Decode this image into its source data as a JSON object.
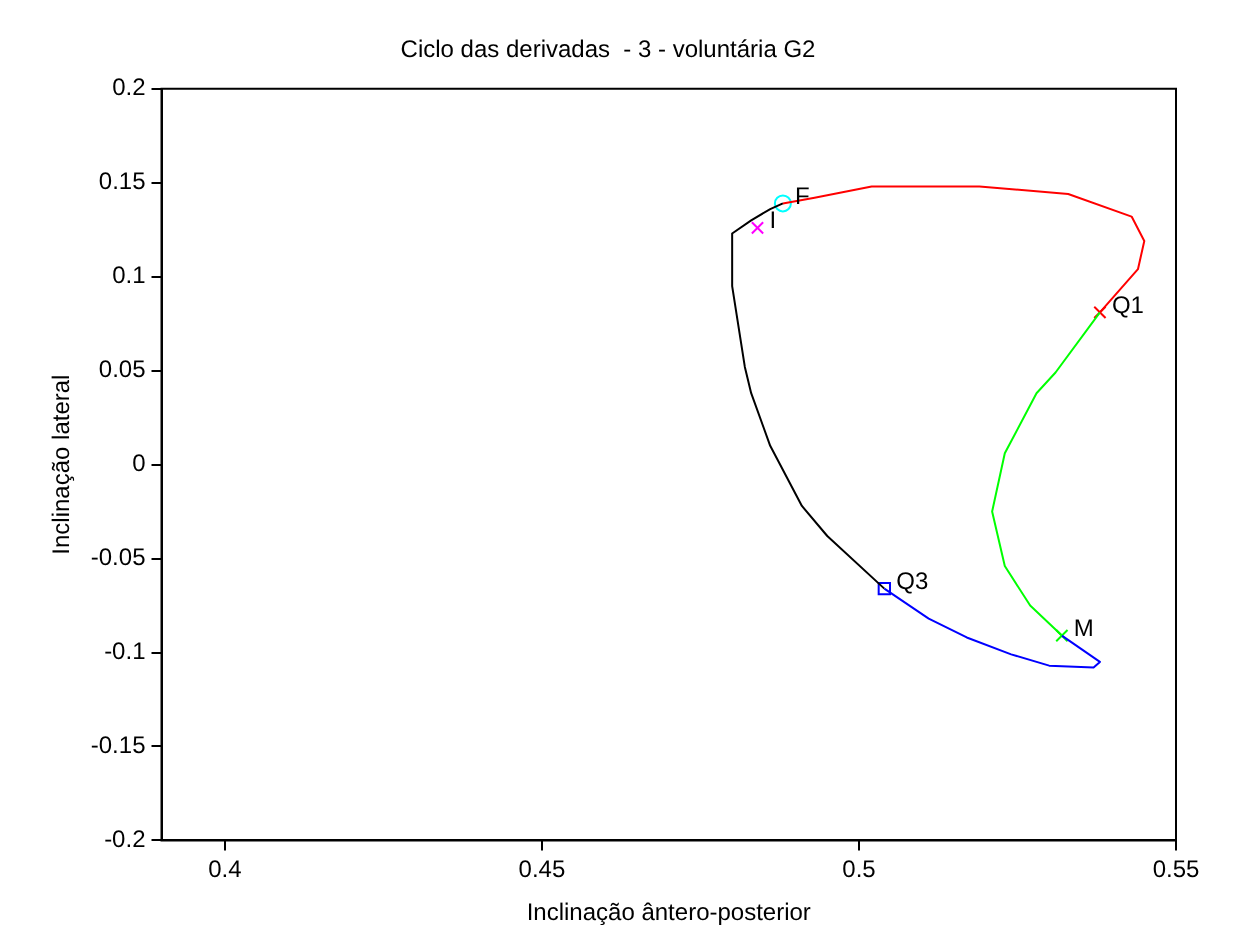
{
  "chart_data": {
    "type": "line",
    "title": "Ciclo das derivadas  - 3 - voluntária G2",
    "xlabel": "Inclinação ântero-posterior",
    "ylabel": "Inclinação lateral",
    "xlim": [
      0.39,
      0.55
    ],
    "xticks": [
      0.4,
      0.45,
      0.5,
      0.55
    ],
    "ylim": [
      -0.2,
      0.2
    ],
    "yticks": [
      -0.2,
      -0.15,
      -0.1,
      -0.05,
      0,
      0.05,
      0.1,
      0.15,
      0.2
    ],
    "grid": false,
    "legend": false,
    "marker": "none",
    "line_style": "solid",
    "series": [
      {
        "color": "#ff0000",
        "x": [
          0.488,
          0.493,
          0.502,
          0.519,
          0.533,
          0.543,
          0.545,
          0.544,
          0.538
        ],
        "values": [
          0.139,
          0.142,
          0.148,
          0.148,
          0.144,
          0.132,
          0.119,
          0.104,
          0.081
        ]
      },
      {
        "color": "#00ff00",
        "x": [
          0.538,
          0.531,
          0.528,
          0.523,
          0.521,
          0.523,
          0.527,
          0.532
        ],
        "values": [
          0.081,
          0.049,
          0.038,
          0.006,
          -0.025,
          -0.054,
          -0.075,
          -0.091
        ]
      },
      {
        "color": "#0000ff",
        "x": [
          0.532,
          0.538,
          0.537,
          0.53,
          0.524,
          0.517,
          0.511,
          0.504
        ],
        "values": [
          -0.091,
          -0.105,
          -0.108,
          -0.107,
          -0.101,
          -0.092,
          -0.082,
          -0.066
        ]
      },
      {
        "color": "#000000",
        "x": [
          0.504,
          0.495,
          0.491,
          0.486,
          0.483,
          0.482,
          0.48,
          0.48,
          0.483,
          0.486,
          0.488
        ],
        "values": [
          -0.066,
          -0.038,
          -0.022,
          0.01,
          0.038,
          0.052,
          0.095,
          0.123,
          0.13,
          0.136,
          0.139
        ]
      },
      {
        "type": "scatter",
        "color": "#00ffff",
        "marker": "circle",
        "x": [
          0.488
        ],
        "values": [
          0.139
        ]
      },
      {
        "type": "scatter",
        "color": "#ff00ff",
        "marker": "cross",
        "x": [
          0.484
        ],
        "values": [
          0.126
        ]
      },
      {
        "type": "scatter",
        "color": "#ff0000",
        "marker": "cross",
        "x": [
          0.538
        ],
        "values": [
          0.081
        ]
      },
      {
        "type": "scatter",
        "color": "#00ff00",
        "marker": "cross",
        "x": [
          0.532
        ],
        "values": [
          -0.091
        ]
      },
      {
        "type": "scatter",
        "color": "#0000ff",
        "marker": "square",
        "x": [
          0.504
        ],
        "values": [
          -0.066
        ]
      }
    ],
    "annotations": [
      {
        "text": "F",
        "x": 0.488,
        "y": 0.139
      },
      {
        "text": "I",
        "x": 0.484,
        "y": 0.126
      },
      {
        "text": "Q1",
        "x": 0.538,
        "y": 0.081
      },
      {
        "text": "M",
        "x": 0.532,
        "y": -0.091
      },
      {
        "text": "Q3",
        "x": 0.504,
        "y": -0.066
      }
    ]
  }
}
